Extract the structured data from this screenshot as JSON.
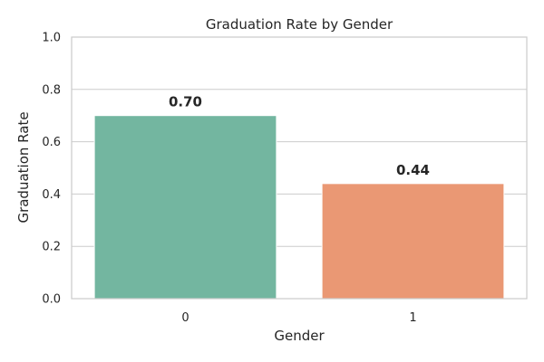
{
  "chart_data": {
    "type": "bar",
    "title": "Graduation Rate by Gender",
    "xlabel": "Gender",
    "ylabel": "Graduation Rate",
    "categories": [
      "0",
      "1"
    ],
    "values": [
      0.7,
      0.44
    ],
    "data_labels": [
      "0.70",
      "0.44"
    ],
    "ylim": [
      0,
      1.0
    ],
    "yticks": [
      "0.0",
      "0.2",
      "0.4",
      "0.6",
      "0.8",
      "1.0"
    ],
    "grid": "horizontal",
    "colors": [
      "#73b6a0",
      "#ea9874"
    ]
  }
}
